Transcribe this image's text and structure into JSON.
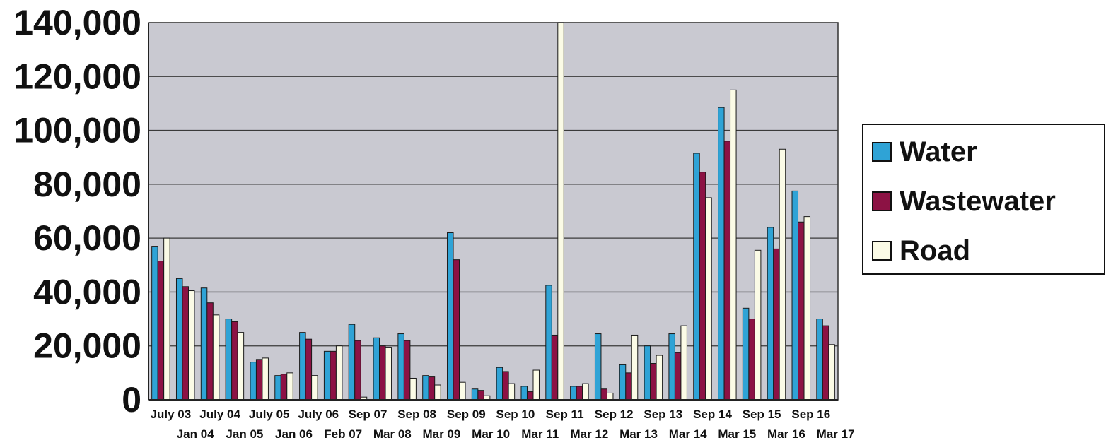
{
  "chart_data": {
    "type": "bar",
    "title": "",
    "xlabel": "",
    "ylabel": "",
    "ylim": [
      0,
      140000
    ],
    "yticks": [
      "0",
      "20,000",
      "40,000",
      "60,000",
      "80,000",
      "100,000",
      "120,000",
      "140,000"
    ],
    "grid": true,
    "legend_position": "right",
    "categories": [
      "July 03",
      "Jan 04",
      "July 04",
      "Jan 05",
      "July 05",
      "Jan 06",
      "July 06",
      "Feb 07",
      "Sep 07",
      "Mar 08",
      "Sep 08",
      "Mar 09",
      "Sep 09",
      "Mar 10",
      "Sep 10",
      "Mar 11",
      "Sep 11",
      "Mar 12",
      "Sep 12",
      "Mar 13",
      "Sep 13",
      "Mar 14",
      "Sep 14",
      "Mar 15",
      "Sep 15",
      "Mar 16",
      "Sep 16",
      "Mar 17"
    ],
    "series": [
      {
        "name": "Water",
        "color": "#2fa3d6",
        "values": [
          57000,
          45000,
          41500,
          30000,
          14000,
          9000,
          25000,
          18000,
          28000,
          23000,
          24500,
          9000,
          62000,
          4000,
          12000,
          5000,
          42500,
          5000,
          24500,
          13000,
          20000,
          24500,
          91500,
          108500,
          34000,
          64000,
          77500,
          30000
        ]
      },
      {
        "name": "Wastewater",
        "color": "#8c1244",
        "values": [
          51500,
          42000,
          36000,
          29000,
          15000,
          9500,
          22500,
          18000,
          22000,
          20000,
          22000,
          8500,
          52000,
          3500,
          10500,
          3000,
          24000,
          5000,
          4000,
          10000,
          13500,
          17500,
          84500,
          96000,
          30000,
          56000,
          66000,
          27500
        ]
      },
      {
        "name": "Road",
        "color": "#fbfbe6",
        "values": [
          60000,
          40500,
          31500,
          25000,
          15500,
          10000,
          9000,
          20000,
          1000,
          19500,
          8000,
          5500,
          6500,
          1500,
          6000,
          11000,
          140000,
          6000,
          2500,
          24000,
          16500,
          27500,
          75000,
          115000,
          55500,
          93000,
          68000,
          20500
        ]
      }
    ]
  }
}
